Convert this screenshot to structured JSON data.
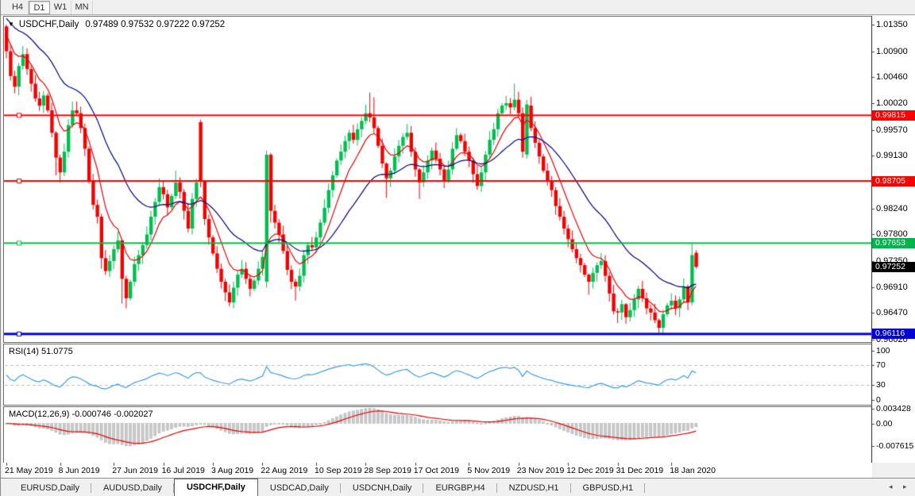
{
  "toolbar": {
    "buttons": [
      {
        "label": "H4",
        "active": false
      },
      {
        "label": "D1",
        "active": true
      },
      {
        "label": "W1",
        "active": false
      },
      {
        "label": "MN",
        "active": false
      }
    ]
  },
  "chart": {
    "marker_glyph": "▼",
    "symbol_title": "USDCHF,Daily",
    "ohlc_text": "0.97489 0.97532 0.97222 0.97252",
    "axis": {
      "ticks": [
        {
          "label": "1.01350",
          "price": 1.0135
        },
        {
          "label": "1.00900",
          "price": 1.009
        },
        {
          "label": "1.00460",
          "price": 1.0046
        },
        {
          "label": "1.00020",
          "price": 1.0002
        },
        {
          "label": "0.99570",
          "price": 0.9957
        },
        {
          "label": "0.99130",
          "price": 0.9913
        },
        {
          "label": "0.98240",
          "price": 0.9824
        },
        {
          "label": "0.97800",
          "price": 0.978
        },
        {
          "label": "0.97350",
          "price": 0.9735
        },
        {
          "label": "0.96910",
          "price": 0.9691
        },
        {
          "label": "0.96470",
          "price": 0.9647
        },
        {
          "label": "0.96020",
          "price": 0.9602
        }
      ],
      "badges": [
        {
          "label": "0.99815",
          "price": 0.99815,
          "color": "#FE0000"
        },
        {
          "label": "0.98705",
          "price": 0.98705,
          "color": "#FE0000"
        },
        {
          "label": "0.97653",
          "price": 0.97653,
          "color": "#00B44C"
        },
        {
          "label": "0.97252",
          "price": 0.97252,
          "color": "#000000"
        },
        {
          "label": "0.96116",
          "price": 0.96116,
          "color": "#0202D6"
        }
      ]
    },
    "dates": [
      {
        "label": "21 May 2019",
        "index": 0
      },
      {
        "label": "8 Jun 2019",
        "index": 13
      },
      {
        "label": "27 Jun 2019",
        "index": 26
      },
      {
        "label": "16 Jul 2019",
        "index": 38
      },
      {
        "label": "3 Aug 2019",
        "index": 50
      },
      {
        "label": "22 Aug 2019",
        "index": 62
      },
      {
        "label": "10 Sep 2019",
        "index": 75
      },
      {
        "label": "28 Sep 2019",
        "index": 87
      },
      {
        "label": "17 Oct 2019",
        "index": 99
      },
      {
        "label": "5 Nov 2019",
        "index": 112
      },
      {
        "label": "23 Nov 2019",
        "index": 124
      },
      {
        "label": "12 Dec 2019",
        "index": 136
      },
      {
        "label": "31 Dec 2019",
        "index": 148
      },
      {
        "label": "18 Jan 2020",
        "index": 161
      }
    ]
  },
  "rsi": {
    "label": "RSI(14) 51.0775",
    "value": "51.0775",
    "ticks": [
      {
        "label": "100",
        "value": 100
      },
      {
        "label": "70",
        "value": 70
      },
      {
        "label": "30",
        "value": 30
      },
      {
        "label": "0",
        "value": 0
      }
    ],
    "levels": [
      70,
      30
    ]
  },
  "macd": {
    "label": "MACD(12,26,9) -0.000746 -0.002027",
    "values": "-0.000746 -0.002027",
    "tick_max": "0.003428",
    "tick_zero": "0.00",
    "tick_min": "-0.007615"
  },
  "tabs": {
    "items": [
      {
        "label": "EURUSD,Daily",
        "active": false
      },
      {
        "label": "AUDUSD,Daily",
        "active": false
      },
      {
        "label": "USDCHF,Daily",
        "active": true
      },
      {
        "label": "USDCAD,Daily",
        "active": false
      },
      {
        "label": "USDCNH,Daily",
        "active": false
      },
      {
        "label": "EURGBP,H4",
        "active": false
      },
      {
        "label": "NZDUSD,H1",
        "active": false
      },
      {
        "label": "GBPUSD,H1",
        "active": false
      }
    ],
    "scroll_left_glyph": "◂",
    "scroll_right_glyph": "▸"
  },
  "chart_data": {
    "type": "candlestick",
    "symbol": "USDCHF",
    "timeframe": "Daily",
    "last_ohlc": {
      "open": 0.97489,
      "high": 0.97532,
      "low": 0.97222,
      "close": 0.97252
    },
    "colors": {
      "bull": "#00BE50",
      "bear": "#F60000",
      "ma_fast": "#E60000",
      "ma_slow": "#000082",
      "rsi": "#3E9BDE",
      "level_dash": "#BDBDBD",
      "macd_bar": "#C9C9C9",
      "macd_bar_edge": "#B2B2B2",
      "macd_signal": "#E40000"
    },
    "hlines": [
      {
        "price": 0.99815,
        "color": "#FE0000",
        "width": 2
      },
      {
        "price": 0.98705,
        "color": "#FE0000",
        "width": 2
      },
      {
        "price": 0.97653,
        "color": "#00BE42",
        "width": 2
      },
      {
        "price": 0.96116,
        "color": "#0202E0",
        "width": 3
      }
    ],
    "ma_periods": {
      "fast": 8,
      "slow": 25
    },
    "indicator_params": {
      "rsi": 14,
      "macd": [
        12,
        26,
        9
      ]
    },
    "wick_base": 0.0004,
    "closes": [
      1.009,
      1.0048,
      1.003,
      1.0065,
      1.0085,
      1.006,
      1.0035,
      1.001,
      0.9998,
      1.0015,
      0.999,
      0.9952,
      0.991,
      0.9885,
      0.992,
      0.9965,
      0.999,
      0.9985,
      0.996,
      0.9925,
      0.987,
      0.983,
      0.981,
      0.974,
      0.9718,
      0.9735,
      0.9755,
      0.977,
      0.9705,
      0.9672,
      0.97,
      0.973,
      0.9745,
      0.9762,
      0.978,
      0.981,
      0.9835,
      0.986,
      0.9848,
      0.9826,
      0.9845,
      0.9868,
      0.9852,
      0.982,
      0.979,
      0.984,
      0.9868,
      0.987,
      0.9806,
      0.9775,
      0.9748,
      0.9722,
      0.97,
      0.9682,
      0.9665,
      0.969,
      0.9712,
      0.9722,
      0.9705,
      0.9688,
      0.9702,
      0.9722,
      0.9742,
      0.9915,
      0.982,
      0.98,
      0.978,
      0.9752,
      0.972,
      0.97,
      0.9692,
      0.971,
      0.9745,
      0.9762,
      0.9758,
      0.9775,
      0.98,
      0.9825,
      0.9855,
      0.988,
      0.9905,
      0.992,
      0.9938,
      0.9952,
      0.994,
      0.9958,
      0.9972,
      0.9985,
      0.9978,
      0.996,
      0.993,
      0.99,
      0.9875,
      0.9888,
      0.9912,
      0.993,
      0.9945,
      0.9952,
      0.992,
      0.989,
      0.9868,
      0.9885,
      0.9905,
      0.9922,
      0.9908,
      0.989,
      0.9872,
      0.989,
      0.9925,
      0.9948,
      0.9938,
      0.992,
      0.9905,
      0.9882,
      0.9862,
      0.9885,
      0.9915,
      0.994,
      0.9958,
      0.9985,
      0.9998,
      1.0002,
      0.9995,
      1.0008,
      0.9985,
      0.992,
      0.9998,
      0.996,
      0.9935,
      0.9912,
      0.9888,
      0.987,
      0.9855,
      0.9828,
      0.981,
      0.979,
      0.9772,
      0.9755,
      0.974,
      0.9728,
      0.9712,
      0.97,
      0.9715,
      0.9728,
      0.9735,
      0.971,
      0.968,
      0.965,
      0.9648,
      0.9662,
      0.964,
      0.9652,
      0.967,
      0.9688,
      0.9672,
      0.9655,
      0.9648,
      0.9635,
      0.9622,
      0.9645,
      0.966,
      0.9668,
      0.9655,
      0.967,
      0.9692,
      0.9665,
      0.9745,
      0.97252
    ],
    "overrides": {
      "0": [
        1.0132,
        1.0135,
        1.0078,
        1.009
      ],
      "12": [
        0.9952,
        0.9955,
        0.988,
        0.991
      ],
      "13": [
        0.991,
        0.9915,
        0.9868,
        0.9885
      ],
      "16": [
        0.9965,
        1.0005,
        0.996,
        0.999
      ],
      "23": [
        0.981,
        0.9815,
        0.9722,
        0.974
      ],
      "28": [
        0.977,
        0.9772,
        0.9663,
        0.9705
      ],
      "29": [
        0.9705,
        0.971,
        0.9655,
        0.9672
      ],
      "41": [
        0.9845,
        0.9888,
        0.984,
        0.9868
      ],
      "47": [
        0.997,
        0.9974,
        0.986,
        0.987
      ],
      "48": [
        0.987,
        0.9872,
        0.9796,
        0.9806
      ],
      "63": [
        0.97,
        0.9922,
        0.969,
        0.9915
      ],
      "64": [
        0.9915,
        0.9918,
        0.98,
        0.982
      ],
      "70": [
        0.97,
        0.9705,
        0.9668,
        0.9692
      ],
      "88": [
        0.9985,
        1.002,
        0.997,
        0.9978
      ],
      "89": [
        0.9978,
        1.0012,
        0.9952,
        0.996
      ],
      "92": [
        0.99,
        0.9902,
        0.9842,
        0.9875
      ],
      "100": [
        0.989,
        0.9892,
        0.984,
        0.9868
      ],
      "109": [
        0.9925,
        0.996,
        0.9922,
        0.9948
      ],
      "123": [
        0.9995,
        1.0035,
        0.999,
        1.0008
      ],
      "126": [
        0.9915,
        1.0008,
        0.9908,
        1.0
      ],
      "141": [
        0.9712,
        0.9714,
        0.9678,
        0.97
      ],
      "148": [
        0.965,
        0.9655,
        0.963,
        0.9648
      ],
      "150": [
        0.9662,
        0.9664,
        0.9629,
        0.964
      ],
      "158": [
        0.9635,
        0.9638,
        0.9613,
        0.9622
      ],
      "165": [
        0.9692,
        0.9695,
        0.9652,
        0.9665
      ],
      "166": [
        0.9665,
        0.97653,
        0.966,
        0.9745
      ],
      "167": [
        0.97489,
        0.97532,
        0.97222,
        0.97252
      ]
    }
  }
}
